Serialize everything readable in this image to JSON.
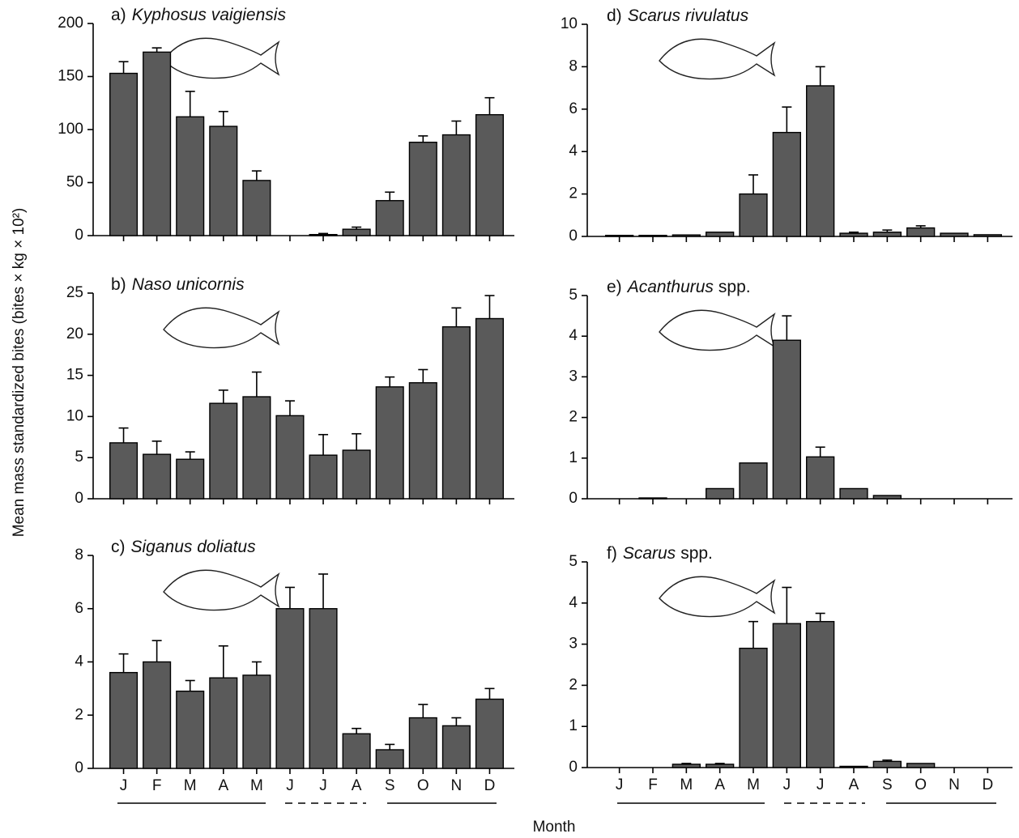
{
  "ylabel": "Mean mass standardized bites (bites × kg × 10²)",
  "xlabel": "Month",
  "chart_data": [
    {
      "type": "bar",
      "label": "a)",
      "title": "Kyphosus vaigiensis",
      "categories": [
        null,
        null,
        null,
        null,
        null,
        null,
        null,
        null,
        null,
        null,
        null,
        null
      ],
      "values": [
        153,
        173,
        112,
        103,
        52,
        0,
        1,
        6,
        33,
        88,
        95,
        114
      ],
      "errors": [
        11,
        4,
        24,
        14,
        9,
        0,
        1,
        2,
        8,
        6,
        13,
        16
      ],
      "ylim": [
        0,
        200
      ],
      "yticks": [
        0,
        50,
        100,
        150,
        200
      ],
      "color": "#5a5a5a"
    },
    {
      "type": "bar",
      "label": "b)",
      "title": "Naso unicornis",
      "categories": [
        null,
        null,
        null,
        null,
        null,
        null,
        null,
        null,
        null,
        null,
        null,
        null
      ],
      "values": [
        6.8,
        5.4,
        4.8,
        11.6,
        12.4,
        10.1,
        5.3,
        5.9,
        13.6,
        14.1,
        20.9,
        21.9
      ],
      "errors": [
        1.8,
        1.6,
        0.9,
        1.6,
        3.0,
        1.8,
        2.5,
        2.0,
        1.2,
        1.6,
        2.3,
        2.8
      ],
      "ylim": [
        0,
        25
      ],
      "yticks": [
        0,
        5,
        10,
        15,
        20,
        25
      ],
      "color": "#5a5a5a"
    },
    {
      "type": "bar",
      "label": "c)",
      "title": "Siganus doliatus",
      "categories": [
        "J",
        "F",
        "M",
        "A",
        "M",
        "J",
        "J",
        "A",
        "S",
        "O",
        "N",
        "D"
      ],
      "values": [
        3.6,
        4.0,
        2.9,
        3.4,
        3.5,
        6.0,
        6.0,
        1.3,
        0.7,
        1.9,
        1.6,
        2.6
      ],
      "errors": [
        0.7,
        0.8,
        0.4,
        1.2,
        0.5,
        0.8,
        1.3,
        0.2,
        0.2,
        0.5,
        0.3,
        0.4
      ],
      "ylim": [
        0,
        8
      ],
      "yticks": [
        0,
        2,
        4,
        6,
        8
      ],
      "color": "#5a5a5a"
    },
    {
      "type": "bar",
      "label": "d)",
      "title": "Scarus rivulatus",
      "categories": [
        null,
        null,
        null,
        null,
        null,
        null,
        null,
        null,
        null,
        null,
        null,
        null
      ],
      "values": [
        0.05,
        0.05,
        0.07,
        0.2,
        2.0,
        4.9,
        7.1,
        0.15,
        0.2,
        0.4,
        0.15,
        0.08
      ],
      "errors": [
        0,
        0,
        0,
        0,
        0.9,
        1.2,
        0.9,
        0.05,
        0.1,
        0.1,
        0,
        0
      ],
      "ylim": [
        0,
        10
      ],
      "yticks": [
        0,
        2,
        4,
        6,
        8,
        10
      ],
      "color": "#5a5a5a"
    },
    {
      "type": "bar",
      "label": "e)",
      "title": "Acanthurus",
      "suffix": "spp.",
      "categories": [
        null,
        null,
        null,
        null,
        null,
        null,
        null,
        null,
        null,
        null,
        null,
        null
      ],
      "values": [
        0,
        0.02,
        0,
        0.25,
        0.88,
        3.9,
        1.03,
        0.25,
        0.08,
        0,
        0,
        0
      ],
      "errors": [
        0,
        0,
        0,
        0,
        0,
        0.6,
        0.24,
        0,
        0,
        0,
        0,
        0
      ],
      "ylim": [
        0,
        5
      ],
      "yticks": [
        0,
        1,
        2,
        3,
        4,
        5
      ],
      "color": "#5a5a5a"
    },
    {
      "type": "bar",
      "label": "f)",
      "title": "Scarus",
      "suffix": "spp.",
      "categories": [
        "J",
        "F",
        "M",
        "A",
        "M",
        "J",
        "J",
        "A",
        "S",
        "O",
        "N",
        "D"
      ],
      "values": [
        0,
        0,
        0.08,
        0.08,
        2.9,
        3.5,
        3.55,
        0.03,
        0.15,
        0.1,
        0,
        0
      ],
      "errors": [
        0,
        0,
        0.02,
        0.02,
        0.65,
        0.88,
        0.2,
        0,
        0.03,
        0,
        0,
        0
      ],
      "ylim": [
        0,
        5
      ],
      "yticks": [
        0,
        1,
        2,
        3,
        4,
        5
      ],
      "color": "#5a5a5a"
    }
  ]
}
